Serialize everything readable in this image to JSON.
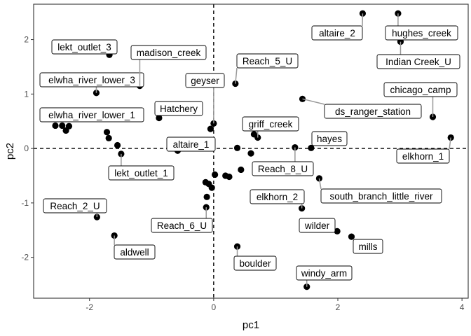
{
  "chart_data": {
    "type": "scatter",
    "title": "",
    "xlabel": "pc1",
    "ylabel": "pc2",
    "xlim": [
      -2.9,
      4.1
    ],
    "ylim": [
      -2.75,
      2.65
    ],
    "xticks": [
      -2,
      0,
      2,
      4
    ],
    "yticks": [
      -2,
      -1,
      0,
      1,
      2
    ],
    "grid": false,
    "reference_lines": {
      "x": 0,
      "y": 0,
      "style": "dashed"
    },
    "colors": {
      "point": "#000000",
      "frame": "#333333",
      "label_border": "#000000",
      "leader_line": "#999999",
      "tick_text": "#4d4d4d"
    },
    "points": [
      {
        "x": -2.55,
        "y": 0.42
      },
      {
        "x": -2.44,
        "y": 0.42
      },
      {
        "x": -2.38,
        "y": 0.33
      },
      {
        "x": -2.33,
        "y": 0.41
      },
      {
        "x": -1.72,
        "y": 0.3
      },
      {
        "x": -1.69,
        "y": 0.19
      },
      {
        "x": -1.55,
        "y": 0.06
      },
      {
        "x": -1.49,
        "y": -0.1,
        "label": "lekt_outlet_1"
      },
      {
        "x": -1.68,
        "y": 1.72,
        "label": "lekt_outlet_3"
      },
      {
        "x": -1.89,
        "y": 1.02,
        "label": "elwha_river_lower_3"
      },
      {
        "x": -1.19,
        "y": 1.15,
        "label": "madison_creek"
      },
      {
        "x": -0.88,
        "y": 0.56,
        "label": "Hatchery"
      },
      {
        "x": -0.58,
        "y": -0.04,
        "label": "altaire_1"
      },
      {
        "x": -0.05,
        "y": 0.36
      },
      {
        "x": 0.0,
        "y": 0.46,
        "label": "geyser"
      },
      {
        "x": 0.35,
        "y": 1.19,
        "label": "Reach_5_U"
      },
      {
        "x": 0.02,
        "y": -0.48
      },
      {
        "x": 0.19,
        "y": -0.5
      },
      {
        "x": 0.25,
        "y": -0.52
      },
      {
        "x": -0.13,
        "y": -0.62
      },
      {
        "x": -0.08,
        "y": -0.65
      },
      {
        "x": -0.03,
        "y": -0.72
      },
      {
        "x": -0.11,
        "y": -0.89
      },
      {
        "x": -0.12,
        "y": -1.08,
        "label": "Reach_6_U"
      },
      {
        "x": 0.38,
        "y": 0.01
      },
      {
        "x": 0.44,
        "y": -0.39
      },
      {
        "x": 0.6,
        "y": -0.09
      },
      {
        "x": 0.65,
        "y": 0.26
      },
      {
        "x": 0.71,
        "y": 0.2,
        "label": "griff_creek"
      },
      {
        "x": 1.31,
        "y": 0.02,
        "label": "Reach_8_U"
      },
      {
        "x": 1.57,
        "y": 0.01,
        "label": "hayes"
      },
      {
        "x": 1.43,
        "y": 0.91,
        "label": "ds_ranger_station"
      },
      {
        "x": 1.7,
        "y": -0.55,
        "label": "south_branch_little_river"
      },
      {
        "x": 1.42,
        "y": -1.1,
        "label": "elkhorn_2"
      },
      {
        "x": 1.99,
        "y": -1.52,
        "label": "wilder"
      },
      {
        "x": 2.22,
        "y": -1.62,
        "label": "mills"
      },
      {
        "x": 0.38,
        "y": -1.8,
        "label": "boulder"
      },
      {
        "x": 1.5,
        "y": -2.54,
        "label": "windy_arm"
      },
      {
        "x": -1.88,
        "y": -1.26,
        "label": "Reach_2_U"
      },
      {
        "x": -1.6,
        "y": -1.6,
        "label": "aldwell"
      },
      {
        "x": 2.4,
        "y": 2.48,
        "label": "altaire_2"
      },
      {
        "x": 2.97,
        "y": 2.48,
        "label": "hughes_creek"
      },
      {
        "x": 3.01,
        "y": 1.96,
        "label": "Indian Creek_U"
      },
      {
        "x": 3.53,
        "y": 0.58,
        "label": "chicago_camp"
      },
      {
        "x": 3.82,
        "y": 0.2,
        "label": "elkhorn_1"
      }
    ],
    "floating_labels": [
      {
        "text": "elwha_river_lower_1",
        "x": -2.32,
        "y": 0.42
      }
    ]
  }
}
